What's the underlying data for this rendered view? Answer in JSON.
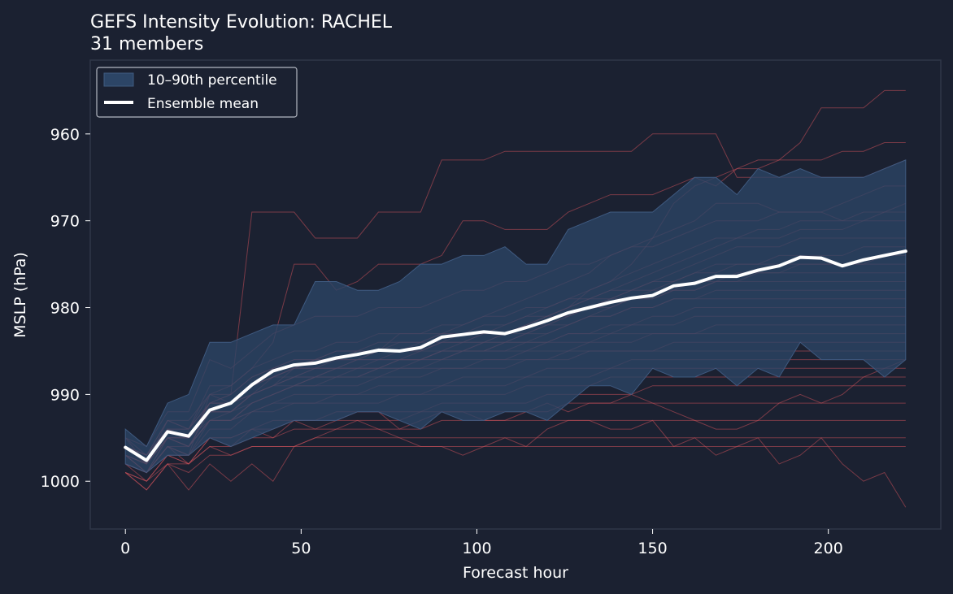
{
  "chart_data": {
    "type": "line",
    "title": "GEFS Intensity Evolution: RACHEL",
    "subtitle": "31 members",
    "xlabel": "Forecast hour",
    "ylabel": "MSLP (hPa)",
    "xlim": [
      -10,
      232
    ],
    "ylim": [
      1005.5,
      951.5
    ],
    "y_axis_inverted": true,
    "xticks": [
      0,
      50,
      100,
      150,
      200
    ],
    "yticks": [
      960,
      970,
      980,
      990,
      1000
    ],
    "grid": false,
    "legend_position": "top-left",
    "legend": {
      "band_label": "10–90th percentile",
      "mean_label": "Ensemble mean"
    },
    "colors": {
      "background": "#1b2131",
      "band": "#2c4566",
      "member": "#c8505a",
      "mean": "#ffffff",
      "frame": "#2f3748"
    },
    "x": [
      0,
      6,
      12,
      18,
      24,
      30,
      36,
      42,
      48,
      54,
      60,
      66,
      72,
      78,
      84,
      90,
      96,
      102,
      108,
      114,
      120,
      126,
      132,
      138,
      144,
      150,
      156,
      162,
      168,
      174,
      180,
      186,
      192,
      198,
      204,
      210,
      216,
      222
    ],
    "ensemble_mean": [
      996.1,
      997.6,
      994.3,
      994.8,
      991.8,
      991.0,
      988.9,
      987.3,
      986.6,
      986.4,
      985.8,
      985.4,
      984.9,
      985.0,
      984.6,
      983.4,
      983.1,
      982.8,
      983.0,
      982.3,
      981.5,
      980.6,
      980.0,
      979.4,
      978.9,
      978.6,
      977.5,
      977.2,
      976.4,
      976.4,
      975.7,
      975.2,
      974.2,
      974.3,
      975.2,
      974.5,
      974.0,
      973.5
    ],
    "p10": [
      994,
      996,
      991,
      990,
      984,
      984,
      983,
      982,
      982,
      977,
      977,
      978,
      978,
      977,
      975,
      975,
      974,
      974,
      973,
      975,
      975,
      971,
      970,
      969,
      969,
      969,
      967,
      965,
      965,
      967,
      964,
      965,
      964,
      965,
      965,
      965,
      964,
      963
    ],
    "p90": [
      998,
      999,
      997,
      997,
      995,
      996,
      995,
      994,
      993,
      993,
      993,
      992,
      992,
      993,
      994,
      992,
      993,
      993,
      992,
      992,
      993,
      991,
      989,
      989,
      990,
      987,
      988,
      988,
      987,
      989,
      987,
      988,
      984,
      986,
      986,
      986,
      988,
      986
    ],
    "members": [
      [
        996,
        997,
        994,
        995,
        991,
        990,
        969,
        969,
        969,
        972,
        972,
        972,
        969,
        969,
        969,
        963,
        963,
        963,
        962,
        962,
        962,
        962,
        962,
        962,
        962,
        960,
        960,
        960,
        960,
        965,
        965,
        965,
        965,
        965,
        965,
        965,
        964,
        963
      ],
      [
        997,
        999,
        996,
        997,
        990,
        989,
        987,
        984,
        975,
        975,
        978,
        977,
        975,
        975,
        975,
        974,
        970,
        970,
        971,
        971,
        971,
        969,
        968,
        967,
        967,
        967,
        966,
        965,
        966,
        964,
        964,
        963,
        961,
        957,
        957,
        957,
        955,
        955
      ],
      [
        995,
        998,
        993,
        994,
        990,
        991,
        990,
        989,
        987,
        986,
        985,
        985,
        985,
        983,
        983,
        983,
        982,
        981,
        980,
        979,
        978,
        977,
        976,
        974,
        973,
        972,
        968,
        966,
        965,
        964,
        963,
        963,
        963,
        963,
        962,
        962,
        961,
        961
      ],
      [
        997,
        999,
        995,
        996,
        993,
        993,
        991,
        990,
        989,
        989,
        988,
        988,
        987,
        986,
        986,
        985,
        985,
        984,
        983,
        982,
        981,
        980,
        978,
        977,
        975,
        972,
        971,
        970,
        968,
        968,
        968,
        969,
        969,
        969,
        968,
        967,
        966,
        966
      ],
      [
        995,
        996,
        992,
        992,
        986,
        987,
        985,
        983,
        982,
        981,
        981,
        981,
        980,
        980,
        980,
        979,
        978,
        978,
        977,
        977,
        976,
        975,
        975,
        974,
        973,
        973,
        972,
        971,
        970,
        970,
        970,
        969,
        969,
        969,
        970,
        970,
        969,
        968
      ],
      [
        996,
        997,
        993,
        994,
        989,
        989,
        987,
        986,
        985,
        985,
        984,
        984,
        983,
        983,
        983,
        982,
        982,
        981,
        981,
        980,
        980,
        979,
        978,
        977,
        976,
        975,
        974,
        973,
        972,
        972,
        971,
        971,
        970,
        970,
        970,
        969,
        969,
        969
      ],
      [
        997,
        998,
        995,
        996,
        992,
        992,
        990,
        988,
        987,
        986,
        986,
        986,
        986,
        985,
        985,
        984,
        984,
        983,
        983,
        982,
        981,
        980,
        979,
        978,
        977,
        976,
        975,
        974,
        973,
        972,
        972,
        972,
        971,
        971,
        971,
        970,
        970,
        970
      ],
      [
        996,
        997,
        994,
        995,
        991,
        991,
        989,
        988,
        987,
        987,
        986,
        986,
        985,
        985,
        985,
        984,
        983,
        983,
        982,
        981,
        981,
        980,
        979,
        979,
        978,
        977,
        976,
        975,
        974,
        973,
        973,
        973,
        972,
        972,
        972,
        972,
        972,
        972
      ],
      [
        997,
        998,
        995,
        995,
        992,
        992,
        990,
        989,
        988,
        988,
        987,
        987,
        987,
        986,
        986,
        985,
        985,
        984,
        984,
        983,
        982,
        981,
        980,
        979,
        978,
        978,
        977,
        976,
        975,
        975,
        975,
        974,
        974,
        974,
        974,
        973,
        973,
        973
      ],
      [
        998,
        999,
        996,
        997,
        993,
        993,
        991,
        990,
        989,
        988,
        988,
        987,
        987,
        987,
        986,
        985,
        985,
        985,
        984,
        984,
        983,
        982,
        981,
        980,
        979,
        979,
        978,
        978,
        977,
        977,
        976,
        976,
        975,
        975,
        975,
        975,
        974,
        974
      ],
      [
        996,
        997,
        994,
        994,
        991,
        991,
        989,
        987,
        986,
        986,
        985,
        985,
        985,
        984,
        984,
        983,
        983,
        982,
        982,
        981,
        980,
        979,
        979,
        978,
        978,
        977,
        977,
        976,
        976,
        975,
        975,
        975,
        975,
        975,
        975,
        975,
        975,
        975
      ],
      [
        997,
        998,
        994,
        995,
        992,
        991,
        989,
        988,
        987,
        986,
        986,
        985,
        985,
        985,
        984,
        984,
        984,
        983,
        983,
        982,
        982,
        981,
        980,
        980,
        979,
        979,
        978,
        977,
        977,
        976,
        976,
        976,
        976,
        976,
        976,
        976,
        976,
        976
      ],
      [
        996,
        998,
        995,
        995,
        991,
        990,
        988,
        987,
        986,
        986,
        986,
        985,
        984,
        984,
        984,
        983,
        983,
        983,
        983,
        982,
        981,
        981,
        980,
        979,
        979,
        978,
        978,
        978,
        977,
        977,
        977,
        977,
        977,
        977,
        977,
        977,
        977,
        977
      ],
      [
        997,
        999,
        995,
        996,
        993,
        992,
        990,
        989,
        988,
        987,
        987,
        986,
        986,
        986,
        985,
        985,
        984,
        984,
        984,
        983,
        983,
        982,
        981,
        981,
        980,
        980,
        979,
        979,
        978,
        978,
        978,
        978,
        978,
        978,
        978,
        978,
        978,
        978
      ],
      [
        995,
        997,
        993,
        993,
        990,
        990,
        988,
        987,
        987,
        986,
        986,
        986,
        985,
        985,
        985,
        984,
        984,
        984,
        983,
        983,
        982,
        982,
        981,
        981,
        980,
        980,
        979,
        979,
        979,
        979,
        979,
        979,
        979,
        979,
        979,
        979,
        979,
        979
      ],
      [
        997,
        998,
        995,
        995,
        992,
        992,
        990,
        989,
        988,
        988,
        987,
        987,
        987,
        986,
        986,
        986,
        985,
        985,
        985,
        984,
        984,
        983,
        983,
        982,
        982,
        981,
        981,
        980,
        980,
        980,
        980,
        980,
        980,
        980,
        980,
        980,
        980,
        980
      ],
      [
        996,
        997,
        994,
        995,
        991,
        991,
        989,
        988,
        987,
        987,
        987,
        986,
        986,
        986,
        986,
        985,
        985,
        985,
        984,
        984,
        984,
        983,
        983,
        983,
        982,
        982,
        982,
        981,
        981,
        981,
        981,
        981,
        981,
        981,
        981,
        981,
        981,
        981
      ],
      [
        998,
        999,
        996,
        996,
        993,
        993,
        991,
        990,
        989,
        988,
        988,
        988,
        987,
        987,
        987,
        986,
        986,
        986,
        986,
        985,
        985,
        985,
        984,
        984,
        984,
        983,
        983,
        983,
        982,
        982,
        982,
        982,
        982,
        982,
        982,
        982,
        982,
        982
      ],
      [
        996,
        998,
        994,
        995,
        992,
        991,
        989,
        988,
        988,
        987,
        987,
        987,
        986,
        986,
        986,
        986,
        985,
        985,
        985,
        985,
        984,
        984,
        984,
        983,
        983,
        983,
        983,
        983,
        983,
        983,
        983,
        983,
        983,
        983,
        983,
        983,
        983,
        983
      ],
      [
        997,
        998,
        995,
        996,
        992,
        992,
        991,
        990,
        989,
        989,
        989,
        989,
        988,
        988,
        988,
        987,
        987,
        987,
        987,
        986,
        986,
        986,
        985,
        985,
        985,
        985,
        984,
        984,
        984,
        984,
        984,
        984,
        984,
        984,
        984,
        984,
        984,
        984
      ],
      [
        996,
        997,
        994,
        994,
        991,
        991,
        990,
        989,
        989,
        988,
        988,
        988,
        988,
        987,
        987,
        987,
        987,
        986,
        986,
        986,
        986,
        985,
        985,
        985,
        985,
        985,
        985,
        985,
        985,
        985,
        985,
        985,
        985,
        985,
        985,
        985,
        985,
        985
      ],
      [
        998,
        999,
        996,
        997,
        994,
        994,
        992,
        991,
        990,
        990,
        990,
        990,
        989,
        989,
        989,
        989,
        988,
        988,
        988,
        988,
        987,
        987,
        987,
        987,
        986,
        986,
        986,
        986,
        986,
        986,
        986,
        986,
        986,
        986,
        986,
        986,
        986,
        986
      ],
      [
        997,
        998,
        995,
        996,
        993,
        993,
        992,
        991,
        991,
        991,
        990,
        990,
        990,
        990,
        990,
        989,
        989,
        989,
        989,
        988,
        988,
        988,
        988,
        987,
        987,
        987,
        987,
        987,
        987,
        987,
        987,
        987,
        987,
        987,
        987,
        987,
        987,
        987
      ],
      [
        996,
        998,
        995,
        995,
        993,
        993,
        992,
        992,
        991,
        991,
        991,
        991,
        991,
        990,
        990,
        990,
        990,
        990,
        990,
        989,
        989,
        989,
        989,
        988,
        988,
        988,
        988,
        988,
        988,
        988,
        988,
        988,
        988,
        988,
        988,
        988,
        988,
        988
      ],
      [
        999,
        1000,
        997,
        998,
        995,
        995,
        994,
        993,
        993,
        993,
        992,
        992,
        992,
        992,
        992,
        991,
        991,
        991,
        991,
        991,
        990,
        990,
        990,
        990,
        990,
        989,
        989,
        989,
        989,
        989,
        989,
        989,
        989,
        989,
        989,
        989,
        989,
        989
      ],
      [
        998,
        999,
        997,
        997,
        995,
        995,
        994,
        994,
        993,
        993,
        993,
        993,
        993,
        993,
        992,
        992,
        992,
        992,
        992,
        992,
        992,
        991,
        991,
        991,
        991,
        991,
        991,
        991,
        991,
        991,
        991,
        991,
        991,
        991,
        991,
        991,
        991,
        991
      ],
      [
        999,
        1000,
        998,
        998,
        996,
        996,
        995,
        995,
        994,
        994,
        994,
        994,
        994,
        994,
        994,
        993,
        993,
        993,
        993,
        993,
        993,
        993,
        993,
        993,
        993,
        993,
        993,
        993,
        993,
        993,
        993,
        993,
        993,
        993,
        993,
        993,
        993,
        993
      ],
      [
        999,
        1001,
        998,
        999,
        997,
        997,
        996,
        996,
        996,
        995,
        995,
        995,
        995,
        995,
        995,
        995,
        995,
        995,
        995,
        995,
        995,
        995,
        995,
        995,
        995,
        995,
        995,
        995,
        995,
        995,
        995,
        995,
        995,
        995,
        995,
        995,
        995,
        995
      ],
      [
        998,
        1000,
        997,
        998,
        996,
        997,
        996,
        996,
        996,
        996,
        996,
        996,
        996,
        996,
        996,
        996,
        996,
        996,
        996,
        996,
        996,
        996,
        996,
        996,
        996,
        996,
        996,
        996,
        996,
        996,
        996,
        996,
        996,
        996,
        996,
        996,
        996,
        996
      ],
      [
        999,
        1001,
        998,
        1001,
        998,
        1000,
        998,
        1000,
        996,
        995,
        994,
        993,
        994,
        995,
        996,
        996,
        997,
        996,
        995,
        996,
        994,
        993,
        993,
        994,
        994,
        993,
        996,
        995,
        997,
        996,
        995,
        998,
        997,
        995,
        998,
        1000,
        999,
        1003
      ],
      [
        997,
        999,
        996,
        998,
        995,
        996,
        994,
        995,
        993,
        994,
        993,
        992,
        992,
        994,
        993,
        992,
        992,
        993,
        993,
        992,
        991,
        992,
        991,
        991,
        990,
        991,
        992,
        993,
        994,
        994,
        993,
        991,
        990,
        991,
        990,
        988,
        987,
        986
      ]
    ]
  }
}
